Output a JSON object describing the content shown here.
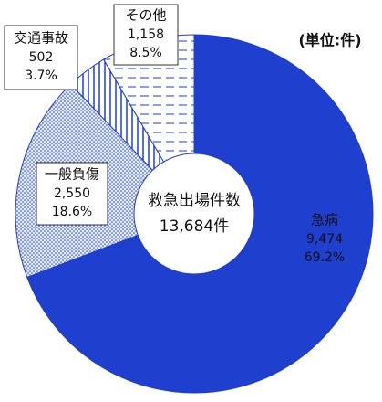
{
  "chart_data": {
    "type": "donut",
    "unit": "(単位:件)",
    "center_title": "救急出場件数",
    "center_total": "13,684件",
    "categories": [
      "急病",
      "一般負傷",
      "交通事故",
      "その他"
    ],
    "values": [
      9474,
      2550,
      502,
      1158
    ],
    "value_labels": [
      "9,474",
      "2,550",
      "502",
      "1,158"
    ],
    "percentages": [
      69.2,
      18.6,
      3.7,
      8.5
    ],
    "percentage_labels": [
      "69.2%",
      "18.6%",
      "3.7%",
      "8.5%"
    ],
    "colors": [
      "#1f3fcf",
      "#e4ecf8",
      "#ffffff",
      "#ffffff"
    ]
  }
}
